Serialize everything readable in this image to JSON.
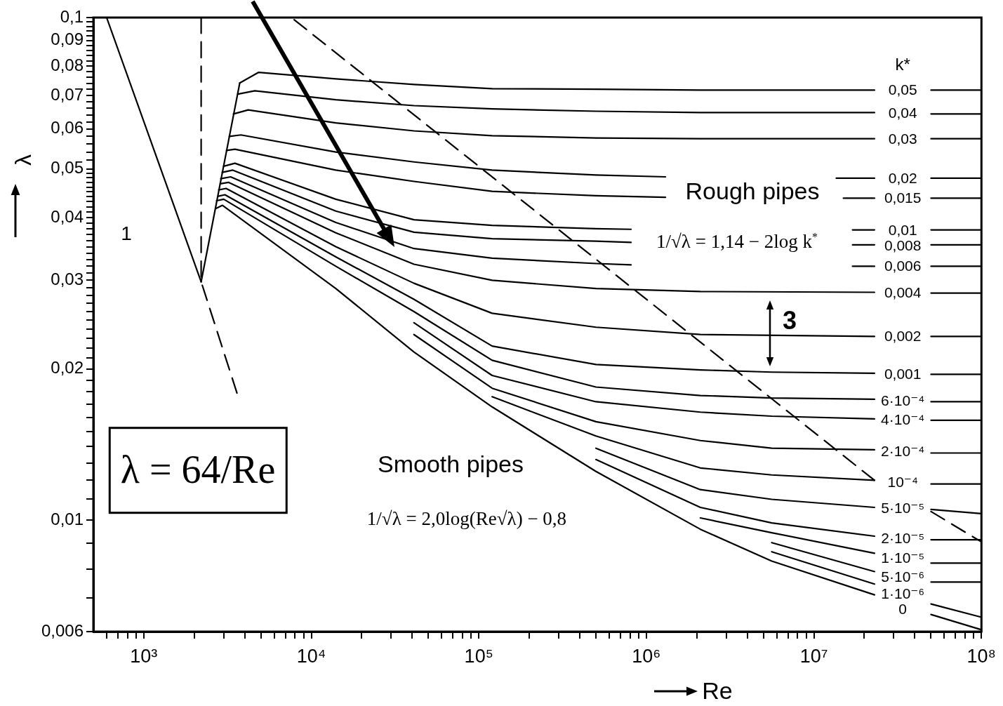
{
  "chart_data": {
    "type": "line",
    "log": "xy",
    "marker": "none",
    "xlabel": "Re",
    "ylabel": "λ",
    "legend_title": "k*",
    "xlim": [
      500,
      100000000
    ],
    "ylim": [
      0.006,
      0.1
    ],
    "xticks": [
      {
        "value": 600,
        "label": null
      },
      {
        "value": 700,
        "label": null
      },
      {
        "value": 800,
        "label": null
      },
      {
        "value": 900,
        "label": null
      },
      {
        "value": 1000,
        "label": "10³"
      },
      {
        "value": 2000,
        "label": null
      },
      {
        "value": 3000,
        "label": null
      },
      {
        "value": 4000,
        "label": null
      },
      {
        "value": 5000,
        "label": null
      },
      {
        "value": 6000,
        "label": null
      },
      {
        "value": 7000,
        "label": null
      },
      {
        "value": 8000,
        "label": null
      },
      {
        "value": 9000,
        "label": null
      },
      {
        "value": 10000,
        "label": "10⁴"
      },
      {
        "value": 20000,
        "label": null
      },
      {
        "value": 30000,
        "label": null
      },
      {
        "value": 40000,
        "label": null
      },
      {
        "value": 50000,
        "label": null
      },
      {
        "value": 60000,
        "label": null
      },
      {
        "value": 70000,
        "label": null
      },
      {
        "value": 80000,
        "label": null
      },
      {
        "value": 90000,
        "label": null
      },
      {
        "value": 100000,
        "label": "10⁵"
      },
      {
        "value": 200000,
        "label": null
      },
      {
        "value": 300000,
        "label": null
      },
      {
        "value": 400000,
        "label": null
      },
      {
        "value": 500000,
        "label": null
      },
      {
        "value": 600000,
        "label": null
      },
      {
        "value": 700000,
        "label": null
      },
      {
        "value": 800000,
        "label": null
      },
      {
        "value": 900000,
        "label": null
      },
      {
        "value": 1000000,
        "label": "10⁶"
      },
      {
        "value": 2000000,
        "label": null
      },
      {
        "value": 3000000,
        "label": null
      },
      {
        "value": 4000000,
        "label": null
      },
      {
        "value": 5000000,
        "label": null
      },
      {
        "value": 6000000,
        "label": null
      },
      {
        "value": 7000000,
        "label": null
      },
      {
        "value": 8000000,
        "label": null
      },
      {
        "value": 9000000,
        "label": null
      },
      {
        "value": 10000000,
        "label": "10⁷"
      },
      {
        "value": 20000000,
        "label": null
      },
      {
        "value": 30000000,
        "label": null
      },
      {
        "value": 40000000,
        "label": null
      },
      {
        "value": 50000000,
        "label": null
      },
      {
        "value": 60000000,
        "label": null
      },
      {
        "value": 70000000,
        "label": null
      },
      {
        "value": 80000000,
        "label": null
      },
      {
        "value": 90000000,
        "label": null
      },
      {
        "value": 100000000,
        "label": "10⁸"
      }
    ],
    "yticks": [
      {
        "value": 0.006,
        "label": "0,006"
      },
      {
        "value": 0.007,
        "label": null
      },
      {
        "value": 0.008,
        "label": null
      },
      {
        "value": 0.009,
        "label": null
      },
      {
        "value": 0.01,
        "label": "0,01"
      },
      {
        "value": 0.011,
        "label": null
      },
      {
        "value": 0.012,
        "label": null
      },
      {
        "value": 0.013,
        "label": null
      },
      {
        "value": 0.014,
        "label": null
      },
      {
        "value": 0.015,
        "label": null
      },
      {
        "value": 0.016,
        "label": null
      },
      {
        "value": 0.017,
        "label": null
      },
      {
        "value": 0.018,
        "label": null
      },
      {
        "value": 0.019,
        "label": null
      },
      {
        "value": 0.02,
        "label": "0,02"
      },
      {
        "value": 0.021,
        "label": null
      },
      {
        "value": 0.022,
        "label": null
      },
      {
        "value": 0.023,
        "label": null
      },
      {
        "value": 0.024,
        "label": null
      },
      {
        "value": 0.025,
        "label": null
      },
      {
        "value": 0.026,
        "label": null
      },
      {
        "value": 0.027,
        "label": null
      },
      {
        "value": 0.028,
        "label": null
      },
      {
        "value": 0.029,
        "label": null
      },
      {
        "value": 0.03,
        "label": "0,03"
      },
      {
        "value": 0.031,
        "label": null
      },
      {
        "value": 0.032,
        "label": null
      },
      {
        "value": 0.033,
        "label": null
      },
      {
        "value": 0.034,
        "label": null
      },
      {
        "value": 0.035,
        "label": null
      },
      {
        "value": 0.036,
        "label": null
      },
      {
        "value": 0.037,
        "label": null
      },
      {
        "value": 0.038,
        "label": null
      },
      {
        "value": 0.039,
        "label": null
      },
      {
        "value": 0.04,
        "label": "0,04"
      },
      {
        "value": 0.041,
        "label": null
      },
      {
        "value": 0.042,
        "label": null
      },
      {
        "value": 0.043,
        "label": null
      },
      {
        "value": 0.044,
        "label": null
      },
      {
        "value": 0.045,
        "label": null
      },
      {
        "value": 0.046,
        "label": null
      },
      {
        "value": 0.047,
        "label": null
      },
      {
        "value": 0.048,
        "label": null
      },
      {
        "value": 0.049,
        "label": null
      },
      {
        "value": 0.05,
        "label": "0,05"
      },
      {
        "value": 0.052,
        "label": null
      },
      {
        "value": 0.054,
        "label": null
      },
      {
        "value": 0.056,
        "label": null
      },
      {
        "value": 0.058,
        "label": null
      },
      {
        "value": 0.06,
        "label": "0,06"
      },
      {
        "value": 0.062,
        "label": null
      },
      {
        "value": 0.064,
        "label": null
      },
      {
        "value": 0.066,
        "label": null
      },
      {
        "value": 0.068,
        "label": null
      },
      {
        "value": 0.07,
        "label": "0,07"
      },
      {
        "value": 0.072,
        "label": null
      },
      {
        "value": 0.074,
        "label": null
      },
      {
        "value": 0.076,
        "label": null
      },
      {
        "value": 0.078,
        "label": null
      },
      {
        "value": 0.08,
        "label": "0,08"
      },
      {
        "value": 0.082,
        "label": null
      },
      {
        "value": 0.084,
        "label": null
      },
      {
        "value": 0.086,
        "label": null
      },
      {
        "value": 0.088,
        "label": null
      },
      {
        "value": 0.09,
        "label": "0,09"
      },
      {
        "value": 0.092,
        "label": null
      },
      {
        "value": 0.094,
        "label": null
      },
      {
        "value": 0.096,
        "label": null
      },
      {
        "value": 0.098,
        "label": null
      },
      {
        "value": 0.1,
        "label": "0,1"
      }
    ],
    "annotations": [
      "1",
      "Rough pipes",
      "1/√λ = 1,14 − 2log k$^{*}$",
      "3",
      "Smooth pipes",
      "1/√λ = 2,0log(Re√λ) − 0,8",
      "λ = 64/Re"
    ],
    "series": [
      {
        "name": "0,05",
        "color": "#000000",
        "x": [
          3740,
          4850,
          14000,
          41000,
          120000,
          500000,
          2100000,
          23000000,
          35000000,
          50000000,
          100000000
        ],
        "values": [
          0.0741,
          0.0778,
          0.0755,
          0.0736,
          0.0722,
          0.072,
          0.0717,
          0.0717,
          null,
          0.0717,
          0.0717
        ]
      },
      {
        "name": "0,04",
        "color": "#000000",
        "x": [
          3640,
          4600,
          14000,
          41000,
          120000,
          500000,
          2100000,
          23000000,
          35000000,
          50000000,
          100000000
        ],
        "values": [
          0.0704,
          0.0715,
          0.0686,
          0.0668,
          0.0658,
          0.0651,
          0.0647,
          0.0647,
          null,
          0.0643,
          0.0643
        ]
      },
      {
        "name": "0,03",
        "color": "#000000",
        "x": [
          3430,
          4200,
          14000,
          41000,
          120000,
          500000,
          2100000,
          23000000,
          35000000,
          50000000,
          100000000
        ],
        "values": [
          0.0643,
          0.0655,
          0.0617,
          0.0595,
          0.0582,
          0.0576,
          0.0574,
          0.0574,
          null,
          0.0574,
          0.0574
        ]
      },
      {
        "name": "0,02",
        "color": "#000000",
        "x": [
          3240,
          3800,
          14000,
          41000,
          120000,
          500000,
          1300000,
          5000000,
          13600000,
          23000000,
          35000000,
          50000000,
          100000000
        ],
        "values": [
          0.058,
          0.0584,
          0.054,
          0.0516,
          0.0497,
          0.0486,
          0.0482,
          null,
          0.0479,
          0.0479,
          null,
          0.0479,
          0.0479
        ]
      },
      {
        "name": "0,015",
        "color": "#000000",
        "x": [
          3120,
          3500,
          14000,
          41000,
          120000,
          500000,
          1300000,
          5000000,
          15000000,
          23000000,
          35000000,
          50000000,
          100000000
        ],
        "values": [
          0.0544,
          0.0547,
          0.0497,
          0.0472,
          0.0451,
          0.0442,
          0.0439,
          null,
          0.0437,
          0.0437,
          null,
          0.0437,
          0.0437
        ]
      },
      {
        "name": "0,01",
        "color": "#000000",
        "x": [
          3000,
          3500,
          14000,
          41000,
          120000,
          500000,
          810000,
          5000000,
          17000000,
          23000000,
          35000000,
          50000000,
          100000000
        ],
        "values": [
          0.0506,
          0.0513,
          0.0435,
          0.0396,
          0.0386,
          0.038,
          0.0379,
          null,
          0.0378,
          0.0378,
          null,
          0.0378,
          0.0378
        ]
      },
      {
        "name": "0,008",
        "color": "#000000",
        "x": [
          2940,
          3400,
          14000,
          41000,
          120000,
          500000,
          810000,
          5000000,
          17000000,
          23000000,
          35000000,
          50000000,
          100000000
        ],
        "values": [
          0.0492,
          0.0497,
          0.0412,
          0.0374,
          0.0363,
          0.0359,
          0.0357,
          null,
          0.0353,
          0.0353,
          null,
          0.0353,
          0.0353
        ]
      },
      {
        "name": "0,006",
        "color": "#000000",
        "x": [
          2880,
          3300,
          14000,
          41000,
          120000,
          500000,
          810000,
          5000000,
          17000000,
          23000000,
          35000000,
          50000000,
          100000000
        ],
        "values": [
          0.0478,
          0.0482,
          0.0391,
          0.0347,
          0.0332,
          0.0324,
          0.0322,
          null,
          0.032,
          0.032,
          null,
          0.032,
          0.032
        ]
      },
      {
        "name": "0,004",
        "color": "#000000",
        "x": [
          2860,
          3200,
          14000,
          41000,
          120000,
          500000,
          2100000,
          23000000,
          35000000,
          50000000,
          100000000
        ],
        "values": [
          0.0467,
          0.047,
          0.0373,
          0.0323,
          0.03,
          0.0289,
          0.0285,
          0.0284,
          null,
          0.0283,
          0.0283
        ]
      },
      {
        "name": "0,002",
        "color": "#000000",
        "x": [
          2800,
          3100,
          14000,
          41000,
          120000,
          500000,
          2100000,
          23000000,
          35000000,
          50000000,
          100000000
        ],
        "values": [
          0.0454,
          0.0457,
          0.035,
          0.0296,
          0.0258,
          0.0242,
          0.0234,
          0.0232,
          null,
          0.0232,
          0.0232
        ]
      },
      {
        "name": "0,001",
        "color": "#000000",
        "x": [
          2780,
          3050,
          14000,
          41000,
          120000,
          500000,
          2100000,
          5600000,
          23000000,
          35000000,
          50000000,
          100000000
        ],
        "values": [
          0.0441,
          0.0444,
          0.0334,
          0.0275,
          0.0222,
          0.0204,
          0.0199,
          0.0197,
          0.0196,
          null,
          0.0195,
          0.0195
        ]
      },
      {
        "name": "6·10⁻⁴",
        "color": "#000000",
        "x": [
          2720,
          3000,
          14000,
          41000,
          120000,
          500000,
          2100000,
          5600000,
          23000000,
          35000000,
          50000000,
          100000000
        ],
        "values": [
          0.0432,
          0.0435,
          0.032,
          0.026,
          0.0208,
          0.0184,
          0.0177,
          0.0175,
          0.0174,
          null,
          0.0172,
          0.0172
        ]
      },
      {
        "name": "4·10⁻⁴",
        "color": "#000000",
        "x": [
          41000,
          120000,
          500000,
          2100000,
          5600000,
          23000000,
          35000000,
          50000000,
          100000000
        ],
        "values": [
          0.0247,
          0.0194,
          0.0172,
          0.0164,
          0.0161,
          0.0159,
          null,
          0.0158,
          0.0158
        ]
      },
      {
        "name": "2·10⁻⁴",
        "color": "#000000",
        "x": [
          41000,
          120000,
          500000,
          2100000,
          5600000,
          23000000,
          35000000,
          50000000,
          100000000
        ],
        "values": [
          0.0234,
          0.0183,
          0.0157,
          0.0144,
          0.0139,
          0.0138,
          null,
          0.0136,
          0.0136
        ]
      },
      {
        "name": "10⁻⁴",
        "color": "#000000",
        "x": [
          120000,
          500000,
          2100000,
          5600000,
          23000000,
          35000000,
          50000000,
          100000000
        ],
        "values": [
          0.0176,
          0.0147,
          0.0127,
          0.0123,
          0.012,
          null,
          0.0118,
          0.0118
        ]
      },
      {
        "name": "5·10⁻⁵",
        "color": "#000000",
        "x": [
          500000,
          2100000,
          5600000,
          23000000,
          35000000,
          50000000,
          100000000
        ],
        "values": [
          0.0139,
          0.0115,
          0.011,
          0.0106,
          null,
          0.0105,
          0.0103
        ]
      },
      {
        "name": "2·10⁻⁵",
        "color": "#000000",
        "x": [
          500000,
          2100000,
          5600000,
          23000000,
          35000000,
          50000000,
          100000000
        ],
        "values": [
          0.0132,
          0.0106,
          0.00987,
          0.00929,
          null,
          0.00914,
          0.00914
        ]
      },
      {
        "name": "1·10⁻⁵",
        "color": "#000000",
        "x": [
          2100000,
          5600000,
          23000000,
          35000000,
          50000000,
          100000000
        ],
        "values": [
          0.0101,
          0.00944,
          0.00859,
          null,
          0.00821,
          0.00821
        ]
      },
      {
        "name": "5·10⁻⁶",
        "color": "#000000",
        "x": [
          5600000,
          23000000,
          35000000,
          50000000,
          100000000
        ],
        "values": [
          0.00902,
          0.0079,
          null,
          0.00753,
          0.00753
        ]
      },
      {
        "name": "1·10⁻⁶",
        "color": "#000000",
        "x": [
          5600000,
          23000000,
          35000000,
          50000000,
          100000000
        ],
        "values": [
          0.00865,
          0.00746,
          null,
          0.00681,
          0.00641
        ]
      },
      {
        "name": "0",
        "color": "#000000",
        "x": [
          2700,
          2950,
          14000,
          41000,
          120000,
          500000,
          2100000,
          5600000,
          23000000,
          35000000,
          50000000,
          100000000
        ],
        "values": [
          0.0417,
          0.0423,
          0.0289,
          0.0216,
          0.0168,
          0.0125,
          0.00959,
          0.00829,
          0.0071,
          null,
          0.00649,
          0.00605
        ]
      },
      {
        "color": "#000000",
        "x": [
          600,
          2200
        ],
        "values": [
          0.1,
          0.0298
        ]
      },
      {
        "color": "#000000",
        "line_style": "dashed",
        "x": [
          2200,
          2200,
          3600
        ],
        "values": [
          0.1,
          0.0298,
          0.0179
        ]
      },
      {
        "color": "#000000",
        "x": [
          2200,
          3740
        ],
        "values": [
          0.0298,
          0.0741
        ]
      },
      {
        "color": "#000000",
        "line_style": "dashed",
        "x": [
          7900,
          23000000,
          35000000,
          50000000,
          100000000
        ],
        "values": [
          0.099,
          0.012,
          null,
          0.0104,
          0.00905
        ]
      }
    ]
  }
}
